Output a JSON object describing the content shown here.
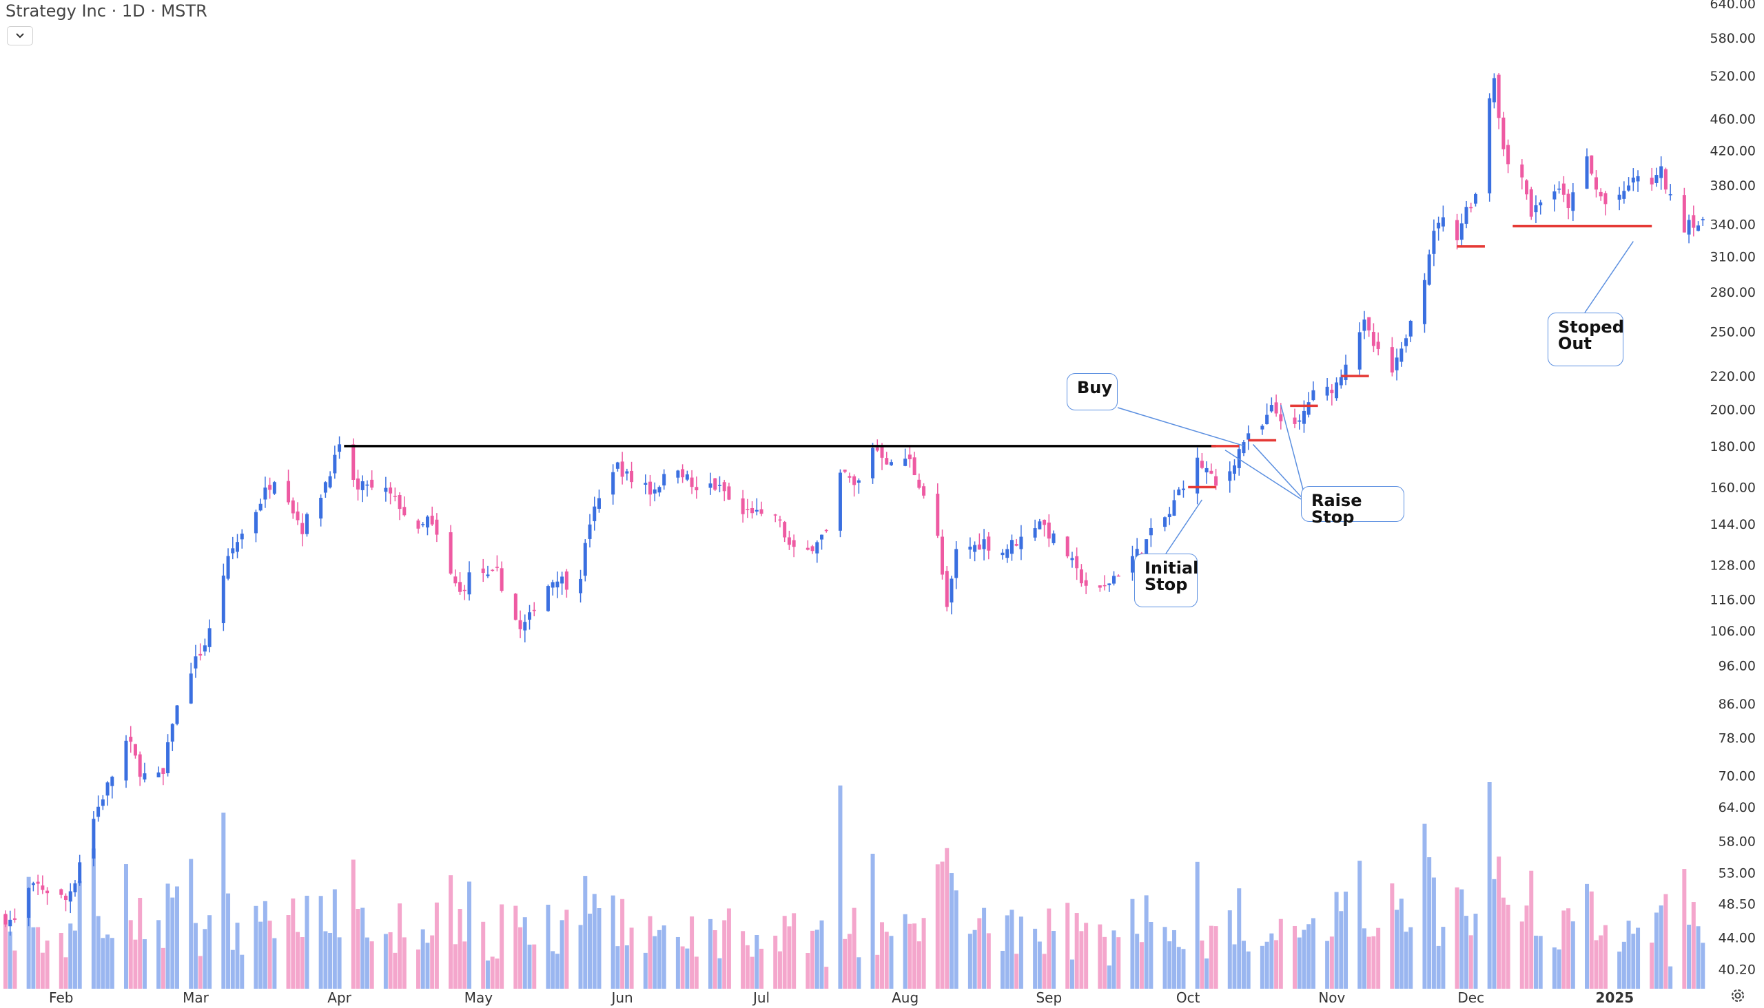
{
  "header": {
    "title": "Strategy Inc · 1D · MSTR"
  },
  "colors": {
    "up": "#3a6fe0",
    "down": "#ee5aa2",
    "volume_up": "#9ab6f0",
    "volume_down": "#f4a6cc",
    "resistance": "#000000",
    "stop": "#e53935",
    "callout_border": "#5b8fe0"
  },
  "icons": {
    "dropdown": "chevron-down-icon",
    "settings": "settings-gear-icon"
  },
  "chart_data": {
    "type": "candlestick",
    "y_scale": "log",
    "ylim": [
      38,
      640
    ],
    "y_ticks": [
      640,
      580,
      520,
      460,
      420,
      380,
      340,
      310,
      280,
      250,
      220,
      200,
      180,
      160,
      144,
      128,
      116,
      106,
      96,
      86,
      78,
      70,
      64,
      58,
      53,
      48.5,
      44,
      40.2
    ],
    "y_tick_labels": [
      "640.00",
      "580.00",
      "520.00",
      "460.00",
      "420.00",
      "380.00",
      "340.00",
      "310.00",
      "280.00",
      "250.00",
      "220.00",
      "200.00",
      "180.00",
      "160.00",
      "144.00",
      "128.00",
      "116.00",
      "106.00",
      "96.00",
      "86.00",
      "78.00",
      "70.00",
      "64.00",
      "58.00",
      "53.00",
      "48.50",
      "44.00",
      "40.20"
    ],
    "x_labels": [
      {
        "label": "Feb",
        "day": 13
      },
      {
        "label": "Mar",
        "day": 42
      },
      {
        "label": "Apr",
        "day": 73
      },
      {
        "label": "May",
        "day": 103
      },
      {
        "label": "Jun",
        "day": 134
      },
      {
        "label": "Jul",
        "day": 164
      },
      {
        "label": "Aug",
        "day": 195
      },
      {
        "label": "Sep",
        "day": 226
      },
      {
        "label": "Oct",
        "day": 256
      },
      {
        "label": "Nov",
        "day": 287
      },
      {
        "label": "Dec",
        "day": 317
      },
      {
        "label": "2025",
        "day": 348
      }
    ],
    "x_range_days": [
      1,
      368
    ],
    "price_key_points": [
      [
        1,
        46.5
      ],
      [
        3,
        46
      ],
      [
        5,
        50
      ],
      [
        8,
        51
      ],
      [
        11,
        50
      ],
      [
        14,
        49
      ],
      [
        16,
        52
      ],
      [
        18,
        58
      ],
      [
        21,
        64
      ],
      [
        24,
        70
      ],
      [
        26,
        78
      ],
      [
        28,
        76
      ],
      [
        30,
        71
      ],
      [
        32,
        69
      ],
      [
        35,
        70
      ],
      [
        37,
        82
      ],
      [
        39,
        88
      ],
      [
        41,
        95
      ],
      [
        44,
        102
      ],
      [
        46,
        110
      ],
      [
        48,
        125
      ],
      [
        50,
        134
      ],
      [
        52,
        140
      ],
      [
        55,
        150
      ],
      [
        57,
        158
      ],
      [
        59,
        165
      ],
      [
        61,
        162
      ],
      [
        63,
        150
      ],
      [
        65,
        142
      ],
      [
        67,
        150
      ],
      [
        69,
        157
      ],
      [
        71,
        168
      ],
      [
        73,
        178
      ],
      [
        75,
        170
      ],
      [
        77,
        158
      ],
      [
        79,
        162
      ],
      [
        81,
        155
      ],
      [
        83,
        158
      ],
      [
        86,
        152
      ],
      [
        88,
        145
      ],
      [
        90,
        140
      ],
      [
        92,
        146
      ],
      [
        95,
        135
      ],
      [
        97,
        124
      ],
      [
        99,
        118
      ],
      [
        101,
        124
      ],
      [
        103,
        128
      ],
      [
        105,
        123
      ],
      [
        107,
        125
      ],
      [
        110,
        113
      ],
      [
        112,
        106
      ],
      [
        114,
        110
      ],
      [
        116,
        118
      ],
      [
        118,
        121
      ],
      [
        120,
        124
      ],
      [
        123,
        120
      ],
      [
        125,
        125
      ],
      [
        127,
        145
      ],
      [
        129,
        154
      ],
      [
        131,
        168
      ],
      [
        133,
        170
      ],
      [
        136,
        163
      ],
      [
        138,
        166
      ],
      [
        140,
        158
      ],
      [
        142,
        162
      ],
      [
        144,
        166
      ],
      [
        146,
        170
      ],
      [
        148,
        164
      ],
      [
        150,
        157
      ],
      [
        152,
        162
      ],
      [
        154,
        160
      ],
      [
        156,
        158
      ],
      [
        158,
        150
      ],
      [
        160,
        148
      ],
      [
        162,
        150
      ],
      [
        164,
        146
      ],
      [
        166,
        152
      ],
      [
        168,
        144
      ],
      [
        170,
        135
      ],
      [
        172,
        131
      ],
      [
        174,
        133
      ],
      [
        176,
        138
      ],
      [
        178,
        140
      ],
      [
        180,
        162
      ],
      [
        182,
        166
      ],
      [
        184,
        160
      ],
      [
        186,
        165
      ],
      [
        188,
        180
      ],
      [
        190,
        176
      ],
      [
        192,
        170
      ],
      [
        194,
        176
      ],
      [
        196,
        172
      ],
      [
        198,
        162
      ],
      [
        200,
        152
      ],
      [
        202,
        138
      ],
      [
        204,
        112
      ],
      [
        206,
        133
      ],
      [
        208,
        135
      ],
      [
        210,
        135
      ],
      [
        212,
        137
      ],
      [
        214,
        134
      ],
      [
        216,
        133
      ],
      [
        218,
        136
      ],
      [
        220,
        138
      ],
      [
        222,
        142
      ],
      [
        224,
        146
      ],
      [
        226,
        140
      ],
      [
        228,
        136
      ],
      [
        230,
        132
      ],
      [
        232,
        125
      ],
      [
        234,
        121
      ],
      [
        236,
        117
      ],
      [
        238,
        120
      ],
      [
        240,
        124
      ],
      [
        242,
        127
      ],
      [
        244,
        131
      ],
      [
        246,
        134
      ],
      [
        248,
        140
      ],
      [
        250,
        145
      ],
      [
        252,
        148
      ],
      [
        254,
        158
      ],
      [
        256,
        166
      ],
      [
        258,
        172
      ],
      [
        260,
        168
      ],
      [
        262,
        160
      ],
      [
        264,
        163
      ],
      [
        266,
        173
      ],
      [
        268,
        183
      ],
      [
        270,
        185
      ],
      [
        272,
        190
      ],
      [
        274,
        200
      ],
      [
        276,
        196
      ],
      [
        278,
        186
      ],
      [
        280,
        192
      ],
      [
        282,
        205
      ],
      [
        284,
        212
      ],
      [
        286,
        211
      ],
      [
        288,
        215
      ],
      [
        290,
        230
      ],
      [
        292,
        248
      ],
      [
        294,
        255
      ],
      [
        296,
        240
      ],
      [
        298,
        228
      ],
      [
        300,
        222
      ],
      [
        302,
        235
      ],
      [
        304,
        262
      ],
      [
        306,
        275
      ],
      [
        308,
        315
      ],
      [
        310,
        345
      ],
      [
        312,
        340
      ],
      [
        314,
        330
      ],
      [
        316,
        355
      ],
      [
        318,
        370
      ],
      [
        320,
        465
      ],
      [
        322,
        520
      ],
      [
        324,
        420
      ],
      [
        326,
        390
      ],
      [
        328,
        395
      ],
      [
        330,
        350
      ],
      [
        332,
        365
      ],
      [
        334,
        378
      ],
      [
        336,
        372
      ],
      [
        338,
        360
      ],
      [
        340,
        375
      ],
      [
        342,
        410
      ],
      [
        344,
        375
      ],
      [
        346,
        360
      ],
      [
        348,
        372
      ],
      [
        350,
        368
      ],
      [
        352,
        390
      ],
      [
        354,
        380
      ],
      [
        356,
        384
      ],
      [
        358,
        395
      ],
      [
        360,
        365
      ],
      [
        362,
        330
      ],
      [
        364,
        345
      ],
      [
        366,
        340
      ],
      [
        368,
        338
      ]
    ],
    "resistance_level": {
      "value": 180,
      "from_day": 74,
      "to_day": 262
    },
    "stop_levels": [
      {
        "value": 160,
        "from_day": 256,
        "to_day": 262
      },
      {
        "value": 180,
        "from_day": 261,
        "to_day": 267
      },
      {
        "value": 183,
        "from_day": 269,
        "to_day": 275
      },
      {
        "value": 202,
        "from_day": 278,
        "to_day": 284
      },
      {
        "value": 220,
        "from_day": 289,
        "to_day": 295
      },
      {
        "value": 319,
        "from_day": 314,
        "to_day": 320
      },
      {
        "value": 338,
        "from_day": 326,
        "to_day": 356
      }
    ],
    "annotations": [
      {
        "text": "Buy",
        "pointer_day": 268,
        "pointer_value": 183
      },
      {
        "text": "Initial\nStop",
        "pointer_day": 259,
        "pointer_value": 158
      },
      {
        "text": "Raise Stop",
        "pointer_days": [
          [
            264,
            180
          ],
          [
            270,
            183
          ],
          [
            276,
            205
          ]
        ]
      },
      {
        "text": "Stoped\nOut",
        "pointer_day": 352,
        "pointer_value": 334
      }
    ]
  }
}
